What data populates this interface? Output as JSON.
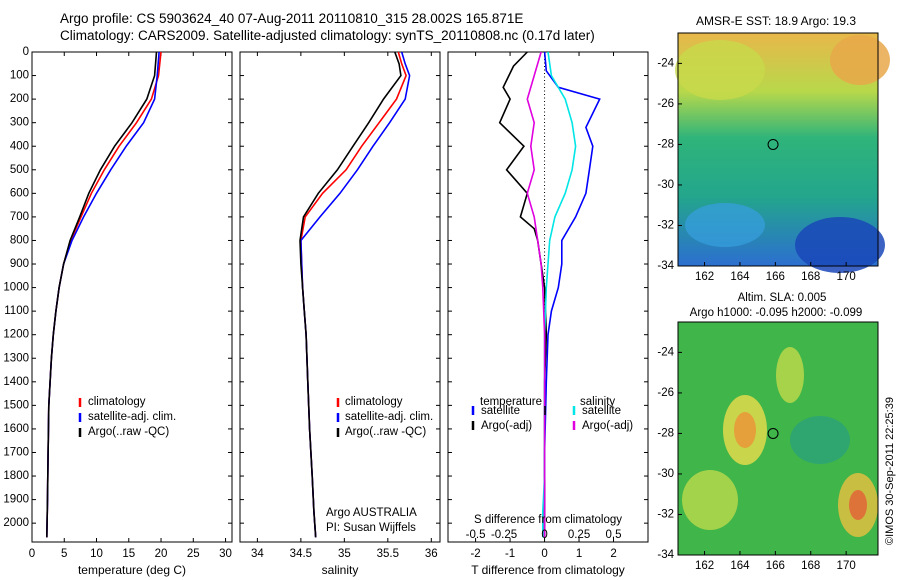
{
  "header": {
    "title_line1": "Argo profile: CS 5903624_40 07-Aug-2011 20110810_315 28.002S 165.871E",
    "title_line2": "Climatology: CARS2009. Satellite-adjusted climatology: synTS_20110808.nc (0.17d later)"
  },
  "colors": {
    "climatology": "#ff0000",
    "satellite": "#0000ff",
    "argo": "#000000",
    "salinity_sat": "#00e5e5",
    "salinity_argo": "#e000e0"
  },
  "chart_data": [
    {
      "type": "line",
      "panel": "temperature",
      "xlabel": "temperature (deg C)",
      "ylabel": "",
      "xlim": [
        0,
        31
      ],
      "ylim": [
        2080,
        0
      ],
      "xticks": [
        0,
        5,
        10,
        15,
        20,
        25,
        30
      ],
      "yticks": [
        0,
        100,
        200,
        300,
        400,
        500,
        600,
        700,
        800,
        900,
        1000,
        1100,
        1200,
        1300,
        1400,
        1500,
        1600,
        1700,
        1800,
        1900,
        2000
      ],
      "legend": [
        "climatology",
        "satellite-adj. clim.",
        "Argo(..raw -QC)"
      ],
      "series": [
        {
          "name": "climatology",
          "color": "#ff0000",
          "x": [
            20.0,
            19.6,
            18.5,
            16.2,
            13.5,
            11.2,
            9.2,
            7.6,
            6.0,
            4.9,
            4.2,
            3.7,
            3.3,
            3.0,
            2.8,
            2.6,
            2.5,
            2.4,
            2.3
          ],
          "y": [
            0,
            100,
            200,
            300,
            400,
            500,
            600,
            700,
            800,
            900,
            1000,
            1100,
            1200,
            1300,
            1400,
            1500,
            1700,
            1900,
            2060
          ]
        },
        {
          "name": "satellite-adj. clim.",
          "color": "#0000ff",
          "x": [
            19.7,
            19.4,
            19.0,
            17.3,
            14.6,
            12.2,
            10.0,
            8.0,
            6.2,
            4.9,
            4.2,
            3.7,
            3.3,
            3.0,
            2.8,
            2.6,
            2.5,
            2.4,
            2.3
          ],
          "y": [
            0,
            100,
            200,
            300,
            400,
            500,
            600,
            700,
            800,
            900,
            1000,
            1100,
            1200,
            1300,
            1400,
            1500,
            1700,
            1900,
            2060
          ]
        },
        {
          "name": "Argo(..raw -QC)",
          "color": "#000000",
          "x": [
            19.3,
            19.0,
            17.8,
            15.5,
            12.8,
            10.6,
            8.8,
            7.4,
            5.9,
            4.9,
            4.2,
            3.7,
            3.3,
            3.0,
            2.8,
            2.6,
            2.5,
            2.4,
            2.3
          ],
          "y": [
            0,
            100,
            200,
            300,
            400,
            500,
            600,
            700,
            800,
            900,
            1000,
            1100,
            1200,
            1300,
            1400,
            1500,
            1700,
            1900,
            2060
          ]
        }
      ]
    },
    {
      "type": "line",
      "panel": "salinity",
      "xlabel": "salinity",
      "xlim": [
        33.8,
        36.1
      ],
      "ylim": [
        2080,
        0
      ],
      "xticks": [
        34,
        34.5,
        35,
        35.5,
        36
      ],
      "legend": [
        "climatology",
        "satellite-adj. clim.",
        "Argo(..raw -QC)"
      ],
      "annotation": [
        "Argo AUSTRALIA",
        "PI: Susan Wijffels"
      ],
      "series": [
        {
          "name": "climatology",
          "color": "#ff0000",
          "x": [
            35.62,
            35.66,
            35.71,
            35.6,
            35.4,
            35.2,
            35.02,
            34.75,
            34.55,
            34.5,
            34.51,
            34.52,
            34.54,
            34.56,
            34.58,
            34.6,
            34.63,
            34.65,
            34.67
          ],
          "y": [
            0,
            50,
            100,
            200,
            300,
            400,
            500,
            600,
            700,
            800,
            900,
            1000,
            1100,
            1200,
            1400,
            1600,
            1800,
            1950,
            2060
          ]
        },
        {
          "name": "satellite-adj. clim.",
          "color": "#0000ff",
          "x": [
            35.66,
            35.7,
            35.75,
            35.7,
            35.52,
            35.33,
            35.15,
            34.95,
            34.72,
            34.5,
            34.51,
            34.52,
            34.54,
            34.56,
            34.58,
            34.6,
            34.63,
            34.65,
            34.67
          ],
          "y": [
            0,
            50,
            100,
            200,
            300,
            400,
            500,
            600,
            700,
            800,
            900,
            1000,
            1100,
            1200,
            1400,
            1600,
            1800,
            1950,
            2060
          ]
        },
        {
          "name": "Argo(..raw -QC)",
          "color": "#000000",
          "x": [
            35.58,
            35.63,
            35.65,
            35.45,
            35.28,
            35.1,
            34.92,
            34.7,
            34.53,
            34.49,
            34.5,
            34.52,
            34.54,
            34.56,
            34.58,
            34.6,
            34.63,
            34.65,
            34.67
          ],
          "y": [
            0,
            50,
            100,
            200,
            300,
            400,
            500,
            600,
            700,
            800,
            900,
            1000,
            1100,
            1200,
            1400,
            1600,
            1800,
            1950,
            2060
          ]
        }
      ]
    },
    {
      "type": "line",
      "panel": "difference",
      "xlabel": "T difference from climatology",
      "top_axis_label": "S difference from climatology",
      "xlim": [
        -2.8,
        3.0
      ],
      "ylim": [
        2080,
        0
      ],
      "xticks": [
        -2,
        -1,
        0,
        1,
        2
      ],
      "top_ticks": [
        "-0.5",
        "-0.25",
        "0",
        "0.25",
        "0.5"
      ],
      "legend_headers": [
        "temperature",
        "salinity"
      ],
      "legend": [
        "satellite",
        "Argo(-adj)",
        "satellite",
        "Argo(-adj)"
      ],
      "series": [
        {
          "name": "satellite",
          "color": "#0000ff",
          "x": [
            0,
            0.05,
            0.4,
            1.6,
            1.2,
            1.4,
            1.3,
            1.2,
            0.9,
            0.5,
            0.5,
            0.4,
            0.2,
            0.1,
            0.05,
            0,
            0
          ],
          "y": [
            0,
            80,
            150,
            200,
            320,
            400,
            500,
            600,
            700,
            800,
            900,
            1000,
            1100,
            1200,
            1400,
            1700,
            2060
          ]
        },
        {
          "name": "Argo(-adj)",
          "color": "#000000",
          "x": [
            -0.5,
            -0.9,
            -1.2,
            -1.0,
            -1.3,
            -0.6,
            -1.1,
            -0.5,
            -0.7,
            -0.3,
            -0.2,
            -0.1,
            0,
            0.05,
            0,
            0,
            0
          ],
          "y": [
            0,
            60,
            150,
            200,
            300,
            400,
            500,
            600,
            700,
            750,
            800,
            900,
            1000,
            1200,
            1400,
            1700,
            2060
          ]
        },
        {
          "name": "satellite",
          "color": "#00e5e5",
          "x": [
            0.1,
            0.2,
            0.6,
            0.8,
            0.9,
            0.8,
            0.6,
            0.3,
            0.15,
            0.1,
            0.05,
            0,
            0,
            0,
            0,
            -0.05,
            -0.05
          ],
          "y": [
            0,
            100,
            200,
            300,
            400,
            500,
            600,
            700,
            800,
            900,
            1000,
            1200,
            1400,
            1600,
            1800,
            1950,
            2060
          ]
        },
        {
          "name": "Argo(-adj)",
          "color": "#e000e0",
          "x": [
            -0.1,
            -0.3,
            -0.5,
            -0.3,
            -0.4,
            -0.3,
            -0.5,
            -0.3,
            -0.2,
            -0.1,
            -0.05,
            0,
            0,
            0,
            0,
            0
          ],
          "y": [
            0,
            100,
            200,
            300,
            400,
            500,
            600,
            700,
            800,
            900,
            1000,
            1200,
            1400,
            1600,
            1800,
            2060
          ]
        }
      ]
    },
    {
      "type": "heatmap",
      "panel": "sst_map",
      "title": "AMSR-E SST: 18.9 Argo: 19.3",
      "xlim": [
        160.5,
        171.8
      ],
      "ylim": [
        -34,
        -22.5
      ],
      "xticks": [
        162,
        164,
        166,
        168,
        170
      ],
      "yticks": [
        -24,
        -26,
        -28,
        -30,
        -32,
        -34
      ],
      "marker": {
        "lon": 165.871,
        "lat": -28.002
      }
    },
    {
      "type": "heatmap",
      "panel": "sla_map",
      "title_line1": "Altim. SLA: 0.005",
      "title_line2": "Argo h1000: -0.095 h2000: -0.099",
      "xlim": [
        160.5,
        171.8
      ],
      "ylim": [
        -34,
        -22.5
      ],
      "xticks": [
        162,
        164,
        166,
        168,
        170
      ],
      "yticks": [
        -24,
        -26,
        -28,
        -30,
        -32,
        -34
      ],
      "marker": {
        "lon": 165.871,
        "lat": -28.002
      }
    }
  ],
  "footer": {
    "timestamp": "©IMOS 30-Sep-2011 22:25:39"
  }
}
